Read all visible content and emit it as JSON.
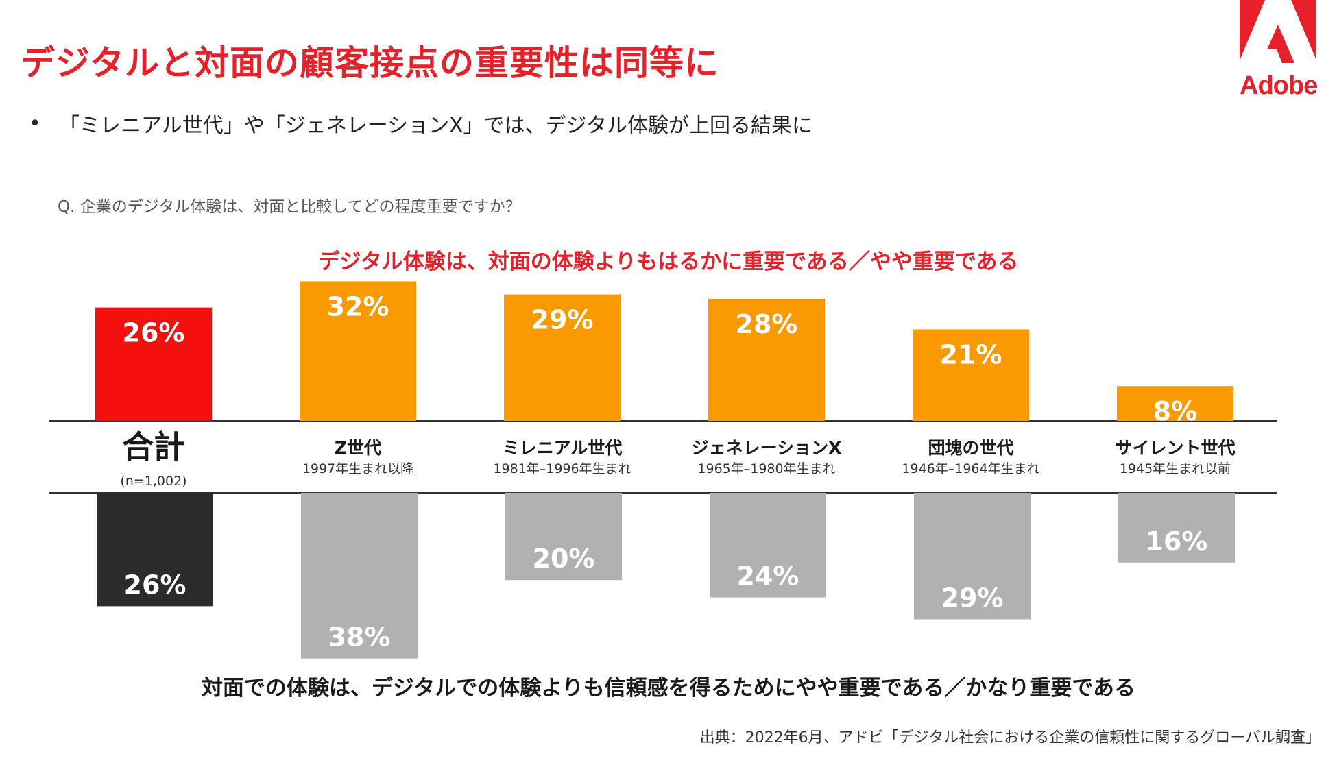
{
  "title": "デジタルと対面の顧客接点の重要性は同等に",
  "logo": {
    "text": "Adobe"
  },
  "subtitle": "「ミレニアル世代」や「ジェネレーションX」では、デジタル体験が上回る結果に",
  "colors": {
    "accent": "#e8202a",
    "total_upper": "#f50f0f",
    "upper": "#fa9a00",
    "total_lower": "#2b2b2b",
    "lower": "#b1b1b1"
  },
  "chart_data": {
    "type": "bar",
    "question": "Q. 企業のデジタル体験は、対面と比較してどの程度重要ですか？",
    "upper_label": "デジタル体験は、対面の体験よりもはるかに重要である／やや重要である",
    "lower_label": "対面での体験は、デジタルでの体験よりも信頼感を得るためにやや重要である／かなり重要である",
    "categories": [
      {
        "name": "合計",
        "sub": "(n=1,002)"
      },
      {
        "name": "Z世代",
        "sub": "1997年生まれ以降"
      },
      {
        "name": "ミレニアル世代",
        "sub": "1981年–1996年生まれ"
      },
      {
        "name": "ジェネレーションX",
        "sub": "1965年–1980年生まれ"
      },
      {
        "name": "団塊の世代",
        "sub": "1946年–1964年生まれ"
      },
      {
        "name": "サイレント世代",
        "sub": "1945年生まれ以前"
      }
    ],
    "series": [
      {
        "name": "デジタル体験は、対面の体験よりもはるかに重要である／やや重要である",
        "values": [
          26,
          32,
          29,
          28,
          21,
          8
        ],
        "labels": [
          "26%",
          "32%",
          "29%",
          "28%",
          "21%",
          "8%"
        ]
      },
      {
        "name": "対面での体験は、デジタルでの体験よりも信頼感を得るためにやや重要である／かなり重要である",
        "values": [
          26,
          38,
          20,
          24,
          29,
          16
        ],
        "labels": [
          "26%",
          "38%",
          "20%",
          "24%",
          "29%",
          "16%"
        ]
      }
    ],
    "unit": "%"
  },
  "source": "出典：2022年6月、アドビ「デジタル社会における企業の信頼性に関するグローバル調査」"
}
